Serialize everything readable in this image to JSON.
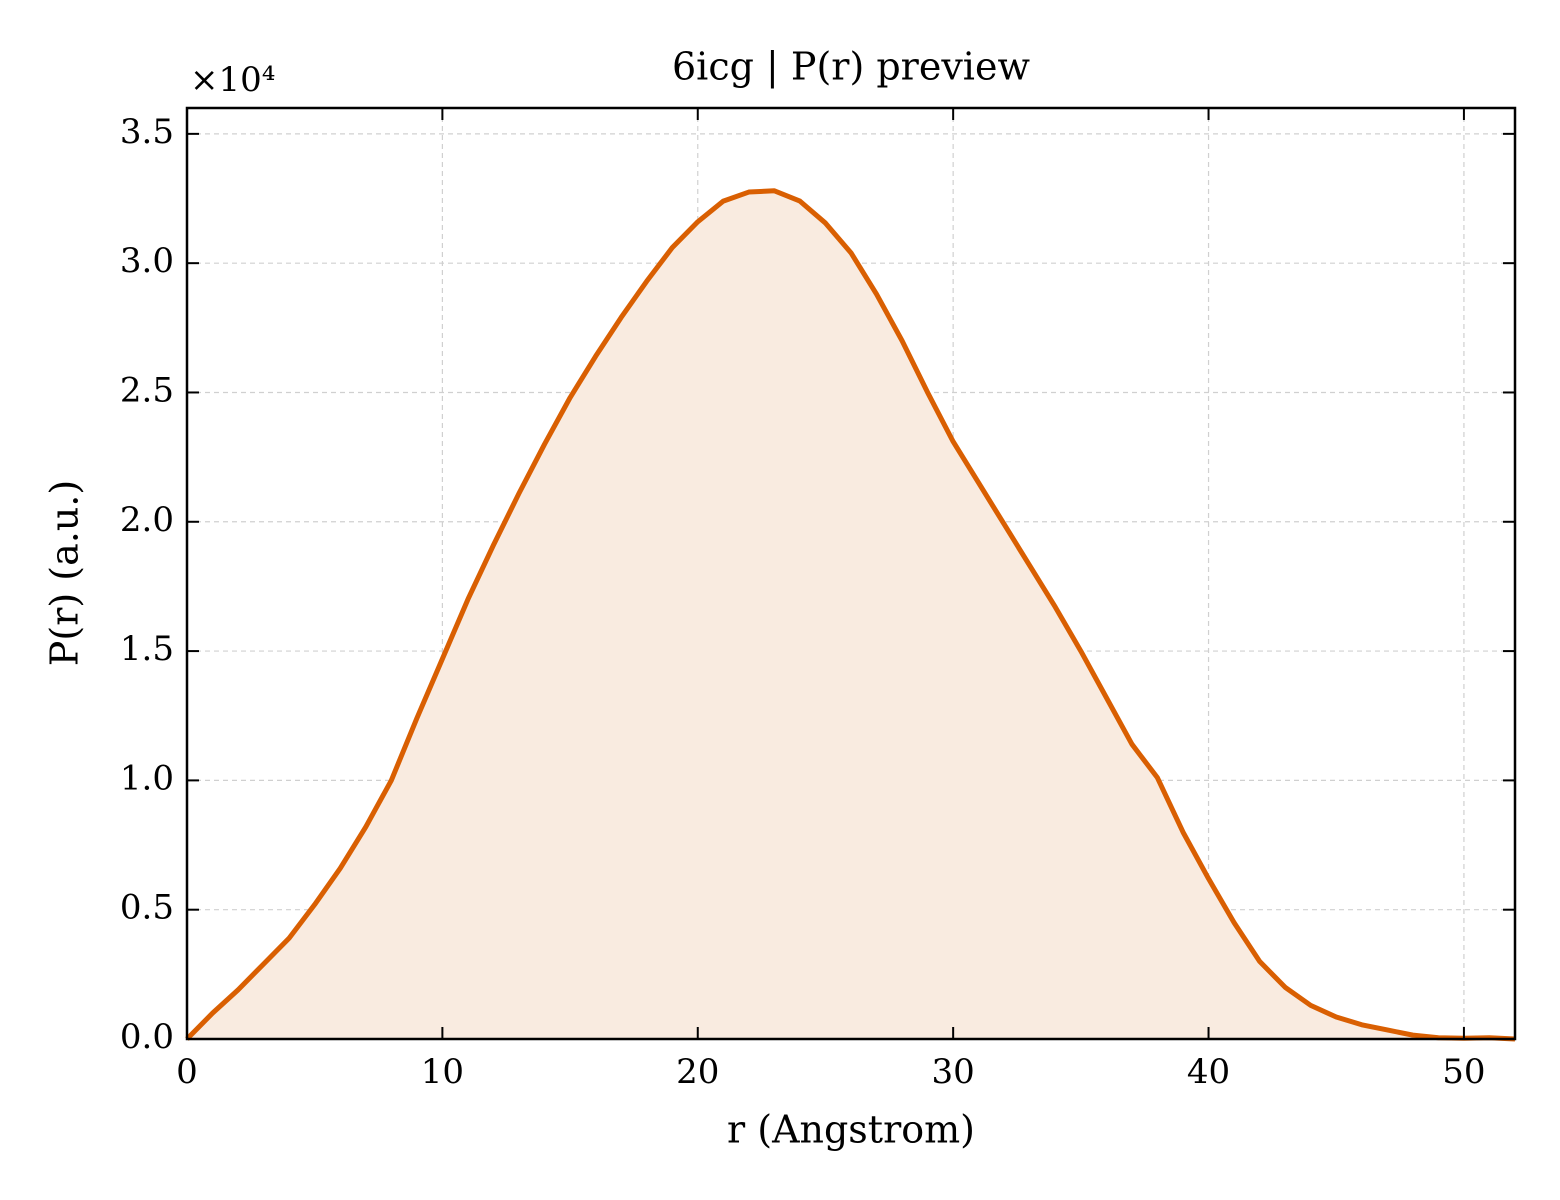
{
  "chart_data": {
    "type": "area",
    "title": "6icg | P(r) preview",
    "x_label": "r (Angstrom)",
    "y_label": "P(r) (a.u.)",
    "y_offset_label": "×10⁴",
    "xlim": [
      0,
      52
    ],
    "ylim": [
      0,
      3.6
    ],
    "xticks": [
      0,
      10,
      20,
      30,
      40,
      50
    ],
    "yticks": [
      {
        "value": 0,
        "label": "0.0"
      },
      0.5,
      {
        "value": 1,
        "label": "1.0"
      },
      1.5,
      {
        "value": 2,
        "label": "2.0"
      },
      2.5,
      {
        "value": 3,
        "label": "3.0"
      },
      3.5
    ],
    "grid": true,
    "x": [
      0,
      1,
      2,
      3,
      4,
      5,
      6,
      7,
      8,
      9,
      10,
      11,
      12,
      13,
      14,
      15,
      16,
      17,
      18,
      19,
      20,
      21,
      22,
      23,
      24,
      25,
      26,
      27,
      28,
      29,
      30,
      31,
      32,
      33,
      34,
      35,
      36,
      37,
      38,
      39,
      40,
      41,
      42,
      43,
      44,
      45,
      46,
      47,
      48,
      49,
      50,
      51,
      52
    ],
    "series": [
      {
        "color": "#d95f02",
        "fill": "#f9ebe0",
        "values": [
          0,
          0.1,
          0.19,
          0.29,
          0.39,
          0.52,
          0.66,
          0.82,
          1.0,
          1.24,
          1.47,
          1.7,
          1.91,
          2.11,
          2.3,
          2.48,
          2.64,
          2.79,
          2.93,
          3.06,
          3.16,
          3.24,
          3.275,
          3.28,
          3.24,
          3.155,
          3.04,
          2.88,
          2.7,
          2.5,
          2.31,
          2.15,
          1.99,
          1.83,
          1.67,
          1.5,
          1.32,
          1.14,
          1.01,
          0.8,
          0.62,
          0.45,
          0.3,
          0.2,
          0.13,
          0.085,
          0.055,
          0.035,
          0.015,
          0.005,
          0.003,
          0.005,
          0
        ]
      }
    ]
  }
}
